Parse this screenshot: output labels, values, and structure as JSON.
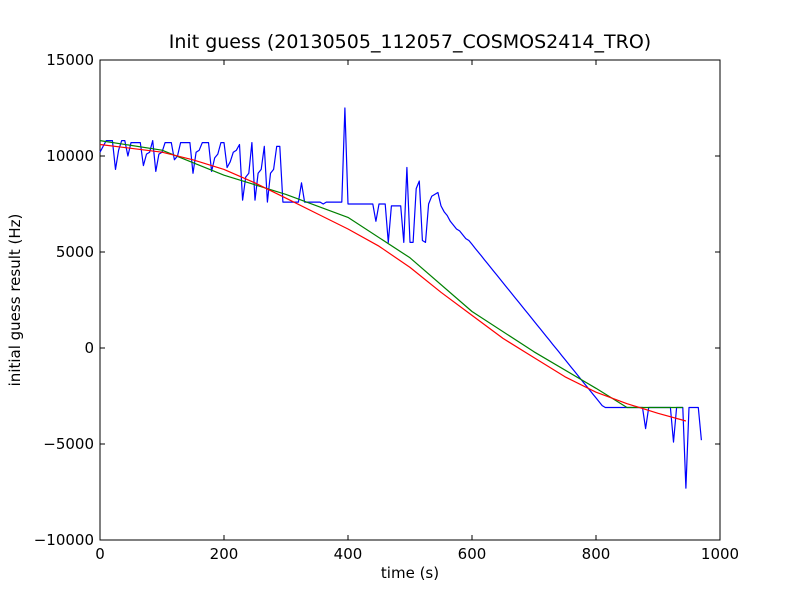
{
  "chart_data": {
    "type": "line",
    "title": "Init guess (20130505_112057_COSMOS2414_TRO)",
    "xlabel": "time (s)",
    "ylabel": "initial guess result (Hz)",
    "xlim": [
      0,
      1000
    ],
    "ylim": [
      -10000,
      15000
    ],
    "xticks": [
      0,
      200,
      400,
      600,
      800,
      1000
    ],
    "yticks": [
      -10000,
      -5000,
      0,
      5000,
      10000,
      15000
    ],
    "xtick_labels": [
      "0",
      "200",
      "400",
      "600",
      "800",
      "1000"
    ],
    "ytick_labels": [
      "−10000",
      "−5000",
      "0",
      "5000",
      "10000",
      "15000"
    ],
    "grid": false,
    "legend": "none",
    "series": [
      {
        "color": "#0000ff",
        "x": [
          0,
          5,
          10,
          15,
          20,
          25,
          30,
          35,
          40,
          45,
          50,
          55,
          60,
          65,
          70,
          75,
          80,
          85,
          90,
          95,
          100,
          105,
          110,
          115,
          120,
          125,
          130,
          135,
          140,
          145,
          150,
          155,
          160,
          165,
          170,
          175,
          180,
          185,
          190,
          195,
          200,
          205,
          210,
          215,
          220,
          225,
          230,
          235,
          240,
          245,
          250,
          255,
          260,
          265,
          270,
          275,
          280,
          285,
          290,
          295,
          300,
          305,
          310,
          315,
          320,
          325,
          330,
          335,
          340,
          345,
          350,
          355,
          360,
          365,
          370,
          375,
          380,
          385,
          390,
          395,
          400,
          405,
          410,
          415,
          420,
          425,
          430,
          435,
          440,
          445,
          450,
          455,
          460,
          465,
          470,
          475,
          480,
          485,
          490,
          495,
          500,
          505,
          510,
          515,
          520,
          525,
          530,
          535,
          540,
          545,
          550,
          555,
          560,
          565,
          570,
          575,
          580,
          585,
          590,
          595,
          600,
          605,
          610,
          615,
          620,
          625,
          630,
          635,
          640,
          645,
          650,
          655,
          660,
          665,
          670,
          675,
          680,
          685,
          690,
          695,
          700,
          705,
          710,
          715,
          720,
          725,
          730,
          735,
          740,
          745,
          750,
          755,
          760,
          765,
          770,
          775,
          780,
          785,
          790,
          795,
          800,
          805,
          810,
          815,
          820,
          825,
          830,
          835,
          840,
          845,
          850,
          855,
          860,
          865,
          870,
          875,
          880,
          885,
          890,
          895,
          900,
          905,
          910,
          915,
          920,
          925,
          930,
          935,
          940,
          945,
          950,
          955,
          960,
          965,
          970
        ],
        "y": [
          10200,
          10500,
          10800,
          10800,
          10800,
          9300,
          10300,
          10800,
          10800,
          10000,
          10700,
          10700,
          10700,
          10700,
          9500,
          10100,
          10200,
          10800,
          9200,
          10100,
          10200,
          10700,
          10700,
          10700,
          9800,
          10000,
          10700,
          10700,
          10700,
          10700,
          9100,
          10200,
          10300,
          10700,
          10700,
          10700,
          9200,
          9900,
          10100,
          10700,
          10700,
          9400,
          9700,
          10200,
          10300,
          10600,
          7700,
          8900,
          9100,
          10700,
          7700,
          9100,
          9300,
          10500,
          7600,
          9100,
          9300,
          10500,
          10500,
          7600,
          7600,
          7600,
          7600,
          7600,
          7600,
          8600,
          7600,
          7600,
          7600,
          7600,
          7600,
          7600,
          7500,
          7600,
          7600,
          7600,
          7600,
          7600,
          7600,
          12500,
          7500,
          7500,
          7500,
          7500,
          7500,
          7500,
          7500,
          7500,
          7500,
          6600,
          7500,
          7500,
          7500,
          5500,
          7400,
          7400,
          7400,
          7400,
          5500,
          9400,
          5500,
          5500,
          8300,
          8700,
          5600,
          5500,
          7500,
          7900,
          8000,
          8100,
          7400,
          7100,
          6900,
          6600,
          6400,
          6200,
          6100,
          5900,
          5700,
          5600,
          5400,
          5200,
          5000,
          4800,
          4600,
          4400,
          4200,
          4000,
          3800,
          3600,
          3400,
          3200,
          3000,
          2800,
          2600,
          2400,
          2200,
          2000,
          1800,
          1600,
          1400,
          1200,
          1000,
          800,
          600,
          400,
          200,
          0,
          -200,
          -400,
          -600,
          -800,
          -1000,
          -1200,
          -1400,
          -1600,
          -1800,
          -2000,
          -2200,
          -2400,
          -2600,
          -2800,
          -3000,
          -3100,
          -3100,
          -3100,
          -3100,
          -3100,
          -3100,
          -3100,
          -3100,
          -3100,
          -3100,
          -3100,
          -3100,
          -3100,
          -4200,
          -3100,
          -3100,
          -3100,
          -3100,
          -3100,
          -3100,
          -3100,
          -3100,
          -4900,
          -3100,
          -3100,
          -3100,
          -7300,
          -3100,
          -3100,
          -3100,
          -3100,
          -4800
        ]
      },
      {
        "color": "#008000",
        "x": [
          0,
          100,
          200,
          300,
          400,
          500,
          600,
          700,
          800,
          850,
          900,
          940
        ],
        "y": [
          10800,
          10300,
          9000,
          8000,
          6800,
          4700,
          1900,
          -200,
          -2100,
          -3100,
          -3100,
          -3100
        ]
      },
      {
        "color": "#ff0000",
        "x": [
          0,
          50,
          100,
          150,
          200,
          250,
          300,
          350,
          400,
          450,
          500,
          550,
          600,
          650,
          700,
          750,
          800,
          850,
          900,
          945
        ],
        "y": [
          10600,
          10400,
          10200,
          9800,
          9300,
          8600,
          7800,
          7000,
          6200,
          5300,
          4200,
          2900,
          1700,
          500,
          -500,
          -1500,
          -2300,
          -2900,
          -3400,
          -3800
        ]
      }
    ]
  }
}
